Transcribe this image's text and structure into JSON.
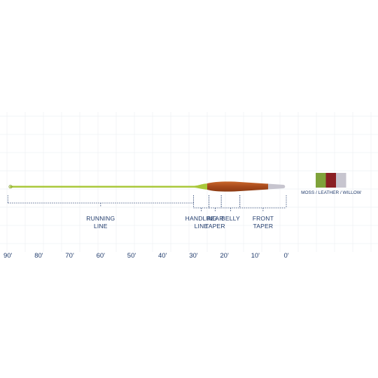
{
  "sections": [
    {
      "id": "running-line",
      "lines": [
        "RUNNING",
        "LINE"
      ],
      "from_ft": 90,
      "to_ft": 30
    },
    {
      "id": "handling-line",
      "lines": [
        "HANDLING",
        "LINE"
      ],
      "from_ft": 30,
      "to_ft": 25
    },
    {
      "id": "rear-taper",
      "lines": [
        "REAR",
        "TAPER"
      ],
      "from_ft": 25,
      "to_ft": 21
    },
    {
      "id": "belly",
      "lines": [
        "BELLY"
      ],
      "from_ft": 21,
      "to_ft": 15
    },
    {
      "id": "front-taper",
      "lines": [
        "FRONT",
        "TAPER"
      ],
      "from_ft": 15,
      "to_ft": 0
    }
  ],
  "axis": {
    "ticks": [
      "90'",
      "80'",
      "70'",
      "60'",
      "50'",
      "40'",
      "30'",
      "20'",
      "10'",
      "0'"
    ]
  },
  "legend": {
    "label": "MOSS / LEATHER / WILLOW",
    "swatches": [
      {
        "name": "moss",
        "color": "#7fa23a"
      },
      {
        "name": "leather",
        "color": "#8a1f23"
      },
      {
        "name": "willow",
        "color": "#c7c5cf"
      }
    ]
  },
  "line_colors": {
    "running": "#a9c83a",
    "head_dark": "#8b3a12",
    "head_light": "#c9662a",
    "tip": "#c7c5cf"
  }
}
